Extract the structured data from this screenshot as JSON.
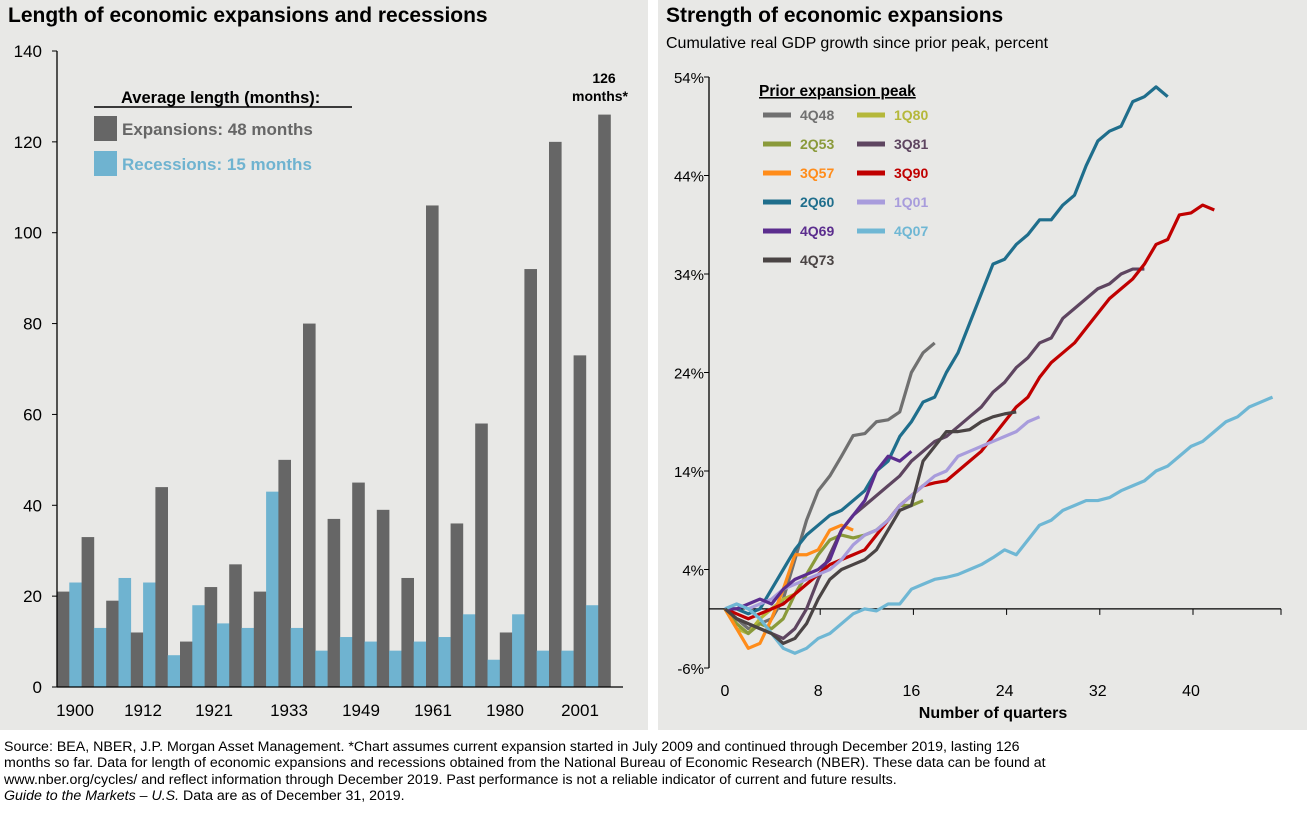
{
  "chart_data": [
    {
      "type": "bar",
      "title": "Length of economic expansions and recessions",
      "ylim": [
        0,
        140
      ],
      "yticks": [
        0,
        20,
        40,
        60,
        80,
        100,
        120,
        140
      ],
      "xtick_labels": [
        "1900",
        "1912",
        "1921",
        "1933",
        "1949",
        "1961",
        "1980",
        "2001"
      ],
      "legend": {
        "title": "Average length (months):",
        "items": [
          {
            "label": "Expansions:  48  months",
            "color": "#666666"
          },
          {
            "label": "Recessions:  15  months",
            "color": "#6fb3d0"
          }
        ]
      },
      "annotation": "126 months*",
      "series": [
        {
          "name": "Expansions",
          "color": "#666666",
          "values": [
            21,
            33,
            19,
            12,
            44,
            10,
            22,
            27,
            21,
            50,
            80,
            37,
            45,
            39,
            24,
            106,
            36,
            58,
            12,
            92,
            120,
            73,
            126
          ]
        },
        {
          "name": "Recessions",
          "color": "#6fb3d0",
          "values": [
            23,
            13,
            24,
            23,
            7,
            18,
            14,
            13,
            43,
            13,
            8,
            11,
            10,
            8,
            10,
            11,
            16,
            6,
            16,
            8,
            8,
            18
          ]
        }
      ]
    },
    {
      "type": "line",
      "title": "Strength of economic expansions",
      "subtitle": "Cumulative real GDP growth since prior peak, percent",
      "xlabel": "Number of quarters",
      "xlim": [
        0,
        48
      ],
      "ylim": [
        -6,
        54
      ],
      "xticks": [
        0,
        8,
        16,
        24,
        32,
        40
      ],
      "yticks": [
        -6,
        4,
        14,
        24,
        34,
        44,
        54
      ],
      "legend_title": "Prior expansion peak",
      "series": [
        {
          "name": "4Q48",
          "color": "#707070",
          "values": [
            0,
            -1,
            -2,
            -1.5,
            -1,
            1,
            5,
            9,
            12,
            13.5,
            15.5,
            17.6,
            17.8,
            19,
            19.2,
            20,
            24,
            26,
            27
          ]
        },
        {
          "name": "1Q80",
          "color": "#b5b83a",
          "values": [
            0,
            -2,
            -2.5,
            -1,
            0,
            1,
            1.5
          ]
        },
        {
          "name": "2Q53",
          "color": "#8a9a3a",
          "values": [
            0,
            -1.5,
            -2.5,
            -1.5,
            -2,
            -1,
            1.5,
            3.5,
            5.5,
            7,
            7.5,
            7.2,
            7.5,
            8,
            9,
            10.5,
            10.5,
            11
          ]
        },
        {
          "name": "3Q81",
          "color": "#5e4560",
          "values": [
            0,
            -1,
            -1.5,
            -2,
            -2.5,
            -3,
            -2,
            0,
            3,
            5.5,
            8,
            9.5,
            10.5,
            11.5,
            12.5,
            13.5,
            15,
            16,
            17,
            17.5,
            18.5,
            19.5,
            20.5,
            22,
            23,
            24.5,
            25.5,
            27,
            27.5,
            29.5,
            30.5,
            31.5,
            32.5,
            33,
            34,
            34.5,
            34.5
          ]
        },
        {
          "name": "3Q57",
          "color": "#ff8c1a",
          "values": [
            0,
            -2,
            -4,
            -3.5,
            -1,
            2,
            5.5,
            5.5,
            6,
            8,
            8.5,
            8
          ]
        },
        {
          "name": "3Q90",
          "color": "#c00000",
          "values": [
            0,
            -0.5,
            -1,
            -0.5,
            0,
            0.5,
            1.5,
            2.5,
            3.5,
            4.5,
            5,
            5.5,
            6,
            7.5,
            9,
            10.5,
            11.5,
            12.5,
            12.8,
            13,
            14,
            15,
            16,
            17.5,
            19,
            20.5,
            21.5,
            23.5,
            25,
            26,
            27,
            28.5,
            30,
            31.5,
            32.5,
            33.5,
            35,
            37,
            37.5,
            40,
            40.2,
            41,
            40.5
          ]
        },
        {
          "name": "2Q60",
          "color": "#1f6e8c",
          "values": [
            0,
            0,
            -0.5,
            0,
            2,
            4,
            6,
            7.5,
            8.5,
            9.5,
            10,
            11,
            12,
            14,
            15,
            17.5,
            19,
            21,
            21.5,
            24,
            26,
            29,
            32,
            35,
            35.5,
            37,
            38,
            39.5,
            39.5,
            41,
            42,
            45,
            47.5,
            48.5,
            49,
            51.5,
            52,
            53,
            52
          ]
        },
        {
          "name": "1Q01",
          "color": "#a89cdc",
          "values": [
            0,
            0.5,
            0,
            0.5,
            1,
            2,
            2.5,
            3,
            3.5,
            4,
            5,
            6.5,
            7.5,
            8,
            9,
            10.5,
            11.5,
            12.5,
            13.5,
            14,
            15.5,
            16,
            16.5,
            17,
            17.5,
            18,
            19,
            19.5
          ]
        },
        {
          "name": "4Q69",
          "color": "#5b2d8e",
          "values": [
            0,
            0,
            0.5,
            1,
            0.5,
            2,
            3,
            3.5,
            4,
            5,
            8,
            9.5,
            11,
            14,
            15.5,
            15,
            16
          ]
        },
        {
          "name": "4Q07",
          "color": "#6fb7d4",
          "values": [
            0,
            0.5,
            0,
            -1,
            -2.5,
            -4,
            -4.5,
            -4,
            -3,
            -2.5,
            -1.5,
            -0.5,
            0,
            -0.2,
            0.5,
            0.5,
            2,
            2.5,
            3,
            3.2,
            3.5,
            4,
            4.5,
            5.2,
            6,
            5.5,
            7,
            8.5,
            9,
            10,
            10.5,
            11,
            11,
            11.3,
            12,
            12.5,
            13,
            14,
            14.5,
            15.5,
            16.5,
            17,
            18,
            19,
            19.5,
            20.5,
            21,
            21.5
          ]
        },
        {
          "name": "4Q73",
          "color": "#4a4444",
          "values": [
            0,
            -1,
            -1.5,
            -2,
            -2.5,
            -3.5,
            -3,
            -1.5,
            1,
            3,
            4,
            4.5,
            5,
            6,
            8,
            10,
            10.5,
            15,
            16.5,
            18,
            18,
            18.2,
            19,
            19.5,
            19.8,
            20
          ]
        }
      ]
    }
  ],
  "footer": {
    "line1": "Source: BEA, NBER, J.P. Morgan Asset Management. *Chart assumes current expansion started in July 2009 and continued through December 2019, lasting 126 months so far. Data for length of economic expansions and recessions obtained from the National Bureau of Economic Research (NBER). These data can be found at www.nber.org/cycles/ and reflect information through December 2019. Past performance is not a reliable indicator of current and future results.",
    "italic": "Guide to the Markets – U.S.",
    "line2": " Data are as of December 31, 2019."
  }
}
